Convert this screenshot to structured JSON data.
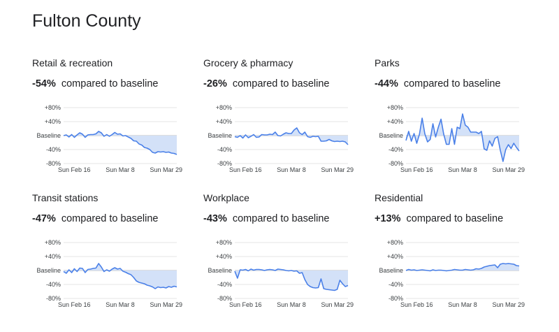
{
  "page": {
    "title": "Fulton County"
  },
  "colors": {
    "line": "#4a80e8",
    "fill": "#d3e1f8",
    "grid": "#e6e6e6",
    "baseline": "#bdbdbd"
  },
  "axis": {
    "y_ticks": [
      "+80%",
      "+40%",
      "Baseline",
      "-40%",
      "-80%"
    ],
    "y_values": [
      80,
      40,
      0,
      -40,
      -80
    ],
    "x_ticks": [
      "Sun Feb 16",
      "Sun Mar 8",
      "Sun Mar 29"
    ],
    "x_tick_days": [
      0,
      21,
      42
    ],
    "compared_label": "compared to baseline"
  },
  "chart_data": [
    {
      "type": "line",
      "title": "Retail & recreation",
      "change": "-54%",
      "ylim": [
        -80,
        80
      ],
      "x_start": "Sun Feb 16",
      "series": [
        {
          "values": [
            0,
            2,
            -4,
            3,
            -5,
            2,
            8,
            4,
            -5,
            2,
            3,
            3,
            5,
            12,
            8,
            -2,
            3,
            -2,
            3,
            9,
            4,
            5,
            -1,
            0,
            -4,
            -8,
            -15,
            -16,
            -24,
            -27,
            -34,
            -36,
            -40,
            -48,
            -50,
            -46,
            -47,
            -46,
            -48,
            -47,
            -50,
            -51,
            -54
          ]
        }
      ]
    },
    {
      "type": "line",
      "title": "Grocery & pharmacy",
      "change": "-26%",
      "ylim": [
        -80,
        80
      ],
      "x_start": "Sun Feb 16",
      "series": [
        {
          "values": [
            -3,
            -5,
            0,
            -7,
            2,
            -6,
            -2,
            3,
            -5,
            -4,
            3,
            2,
            2,
            4,
            3,
            10,
            0,
            -1,
            4,
            8,
            6,
            6,
            16,
            22,
            8,
            3,
            10,
            -3,
            -5,
            -2,
            -3,
            -2,
            -16,
            -16,
            -15,
            -11,
            -15,
            -17,
            -16,
            -17,
            -16,
            -18,
            -26
          ]
        }
      ]
    },
    {
      "type": "line",
      "title": "Parks",
      "change": "-44%",
      "ylim": [
        -80,
        80
      ],
      "x_start": "Sun Feb 16",
      "series": [
        {
          "values": [
            -14,
            12,
            -16,
            6,
            -22,
            4,
            50,
            5,
            -18,
            -11,
            34,
            -4,
            24,
            47,
            4,
            -25,
            -25,
            20,
            -25,
            24,
            20,
            62,
            30,
            24,
            10,
            10,
            10,
            6,
            12,
            -38,
            -42,
            -15,
            -30,
            -8,
            -3,
            -42,
            -74,
            -40,
            -26,
            -37,
            -22,
            -34,
            -44
          ]
        }
      ]
    },
    {
      "type": "line",
      "title": "Transit stations",
      "change": "-47%",
      "ylim": [
        -80,
        80
      ],
      "x_start": "Sun Feb 16",
      "series": [
        {
          "values": [
            -3,
            -8,
            2,
            -6,
            5,
            -3,
            7,
            6,
            -6,
            3,
            4,
            6,
            7,
            20,
            10,
            -3,
            2,
            -2,
            4,
            8,
            4,
            6,
            -2,
            -5,
            -9,
            -12,
            -20,
            -30,
            -34,
            -36,
            -38,
            -42,
            -44,
            -47,
            -52,
            -47,
            -49,
            -48,
            -50,
            -46,
            -48,
            -45,
            -47
          ]
        }
      ]
    },
    {
      "type": "line",
      "title": "Workplace",
      "change": "-43%",
      "ylim": [
        -80,
        80
      ],
      "x_start": "Sun Feb 16",
      "series": [
        {
          "values": [
            -2,
            -22,
            2,
            1,
            3,
            -1,
            4,
            1,
            3,
            3,
            2,
            0,
            2,
            3,
            2,
            0,
            4,
            3,
            2,
            0,
            -1,
            0,
            -2,
            -1,
            -8,
            -6,
            -26,
            -40,
            -46,
            -49,
            -50,
            -49,
            -24,
            -52,
            -54,
            -55,
            -56,
            -57,
            -54,
            -28,
            -38,
            -46,
            -43
          ]
        }
      ]
    },
    {
      "type": "line",
      "title": "Residential",
      "change": "+13%",
      "ylim": [
        -80,
        80
      ],
      "x_start": "Sun Feb 16",
      "series": [
        {
          "values": [
            0,
            3,
            1,
            2,
            0,
            1,
            2,
            1,
            0,
            -1,
            2,
            0,
            1,
            1,
            0,
            -1,
            0,
            1,
            3,
            2,
            1,
            1,
            3,
            2,
            1,
            2,
            5,
            4,
            6,
            10,
            12,
            14,
            15,
            16,
            8,
            18,
            20,
            19,
            20,
            19,
            18,
            14,
            13
          ]
        }
      ]
    }
  ]
}
